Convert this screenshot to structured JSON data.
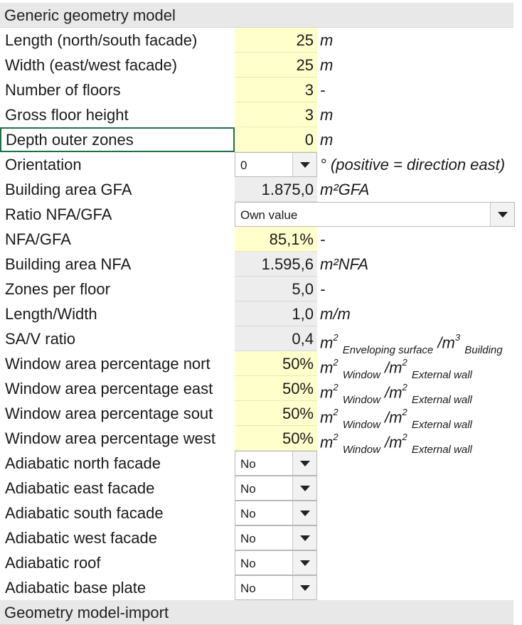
{
  "sections": {
    "generic_title": "Generic geometry model",
    "import_title": "Geometry model-import"
  },
  "fields": {
    "length": {
      "label": "Length (north/south facade)",
      "value": "25",
      "unit": "m"
    },
    "width": {
      "label": "Width (east/west facade)",
      "value": "25",
      "unit": "m"
    },
    "floors": {
      "label": "Number of floors",
      "value": "3",
      "unit": "-"
    },
    "floor_height": {
      "label": "Gross floor height",
      "value": "3",
      "unit": "m"
    },
    "depth_outer": {
      "label": "Depth outer zones",
      "value": "0",
      "unit": "m"
    },
    "orientation": {
      "label": "Orientation",
      "value": "0",
      "unit": "° (positive = direction east)"
    },
    "gfa": {
      "label": "Building area GFA",
      "value": "1.875,0",
      "unit": "m²GFA"
    },
    "ratio": {
      "label": "Ratio NFA/GFA",
      "value": "Own value"
    },
    "nfa_gfa": {
      "label": "NFA/GFA",
      "value": "85,1%",
      "unit": "-"
    },
    "nfa": {
      "label": "Building area NFA",
      "value": "1.595,6",
      "unit": "m²NFA"
    },
    "zones": {
      "label": "Zones per floor",
      "value": "5,0",
      "unit": "-"
    },
    "lw": {
      "label": "Length/Width",
      "value": "1,0",
      "unit": "m/m"
    },
    "sav": {
      "label": "SA/V ratio",
      "value": "0,4",
      "unit_a": "m",
      "unit_a_sub": "Enveloping surface",
      "unit_b": "/m",
      "unit_b_sub": "Building"
    },
    "win_north": {
      "label": "Window area percentage nort",
      "value": "50%"
    },
    "win_east": {
      "label": "Window area percentage east",
      "value": "50%"
    },
    "win_south": {
      "label": "Window area percentage sout",
      "value": "50%"
    },
    "win_west": {
      "label": "Window area percentage west",
      "value": "50%"
    },
    "adi_north": {
      "label": "Adiabatic north facade",
      "value": "No"
    },
    "adi_east": {
      "label": "Adiabatic east facade",
      "value": "No"
    },
    "adi_south": {
      "label": "Adiabatic south facade",
      "value": "No"
    },
    "adi_west": {
      "label": "Adiabatic west facade",
      "value": "No"
    },
    "adi_roof": {
      "label": "Adiabatic roof",
      "value": "No"
    },
    "adi_base": {
      "label": "Adiabatic base plate",
      "value": "No"
    }
  },
  "window_unit": {
    "m": "m",
    "window_sub": "Window",
    "slash_m": "/m",
    "wall_sub": "External wall"
  },
  "superscripts": {
    "two": "2",
    "three": "3"
  },
  "colors": {
    "input_yellow": "#ffffcc",
    "calc_gray": "#ededed",
    "section_bg": "#e8e8e8",
    "selection_green": "#1f7145"
  },
  "icons": {
    "dropdown": "chevron-down-icon"
  }
}
